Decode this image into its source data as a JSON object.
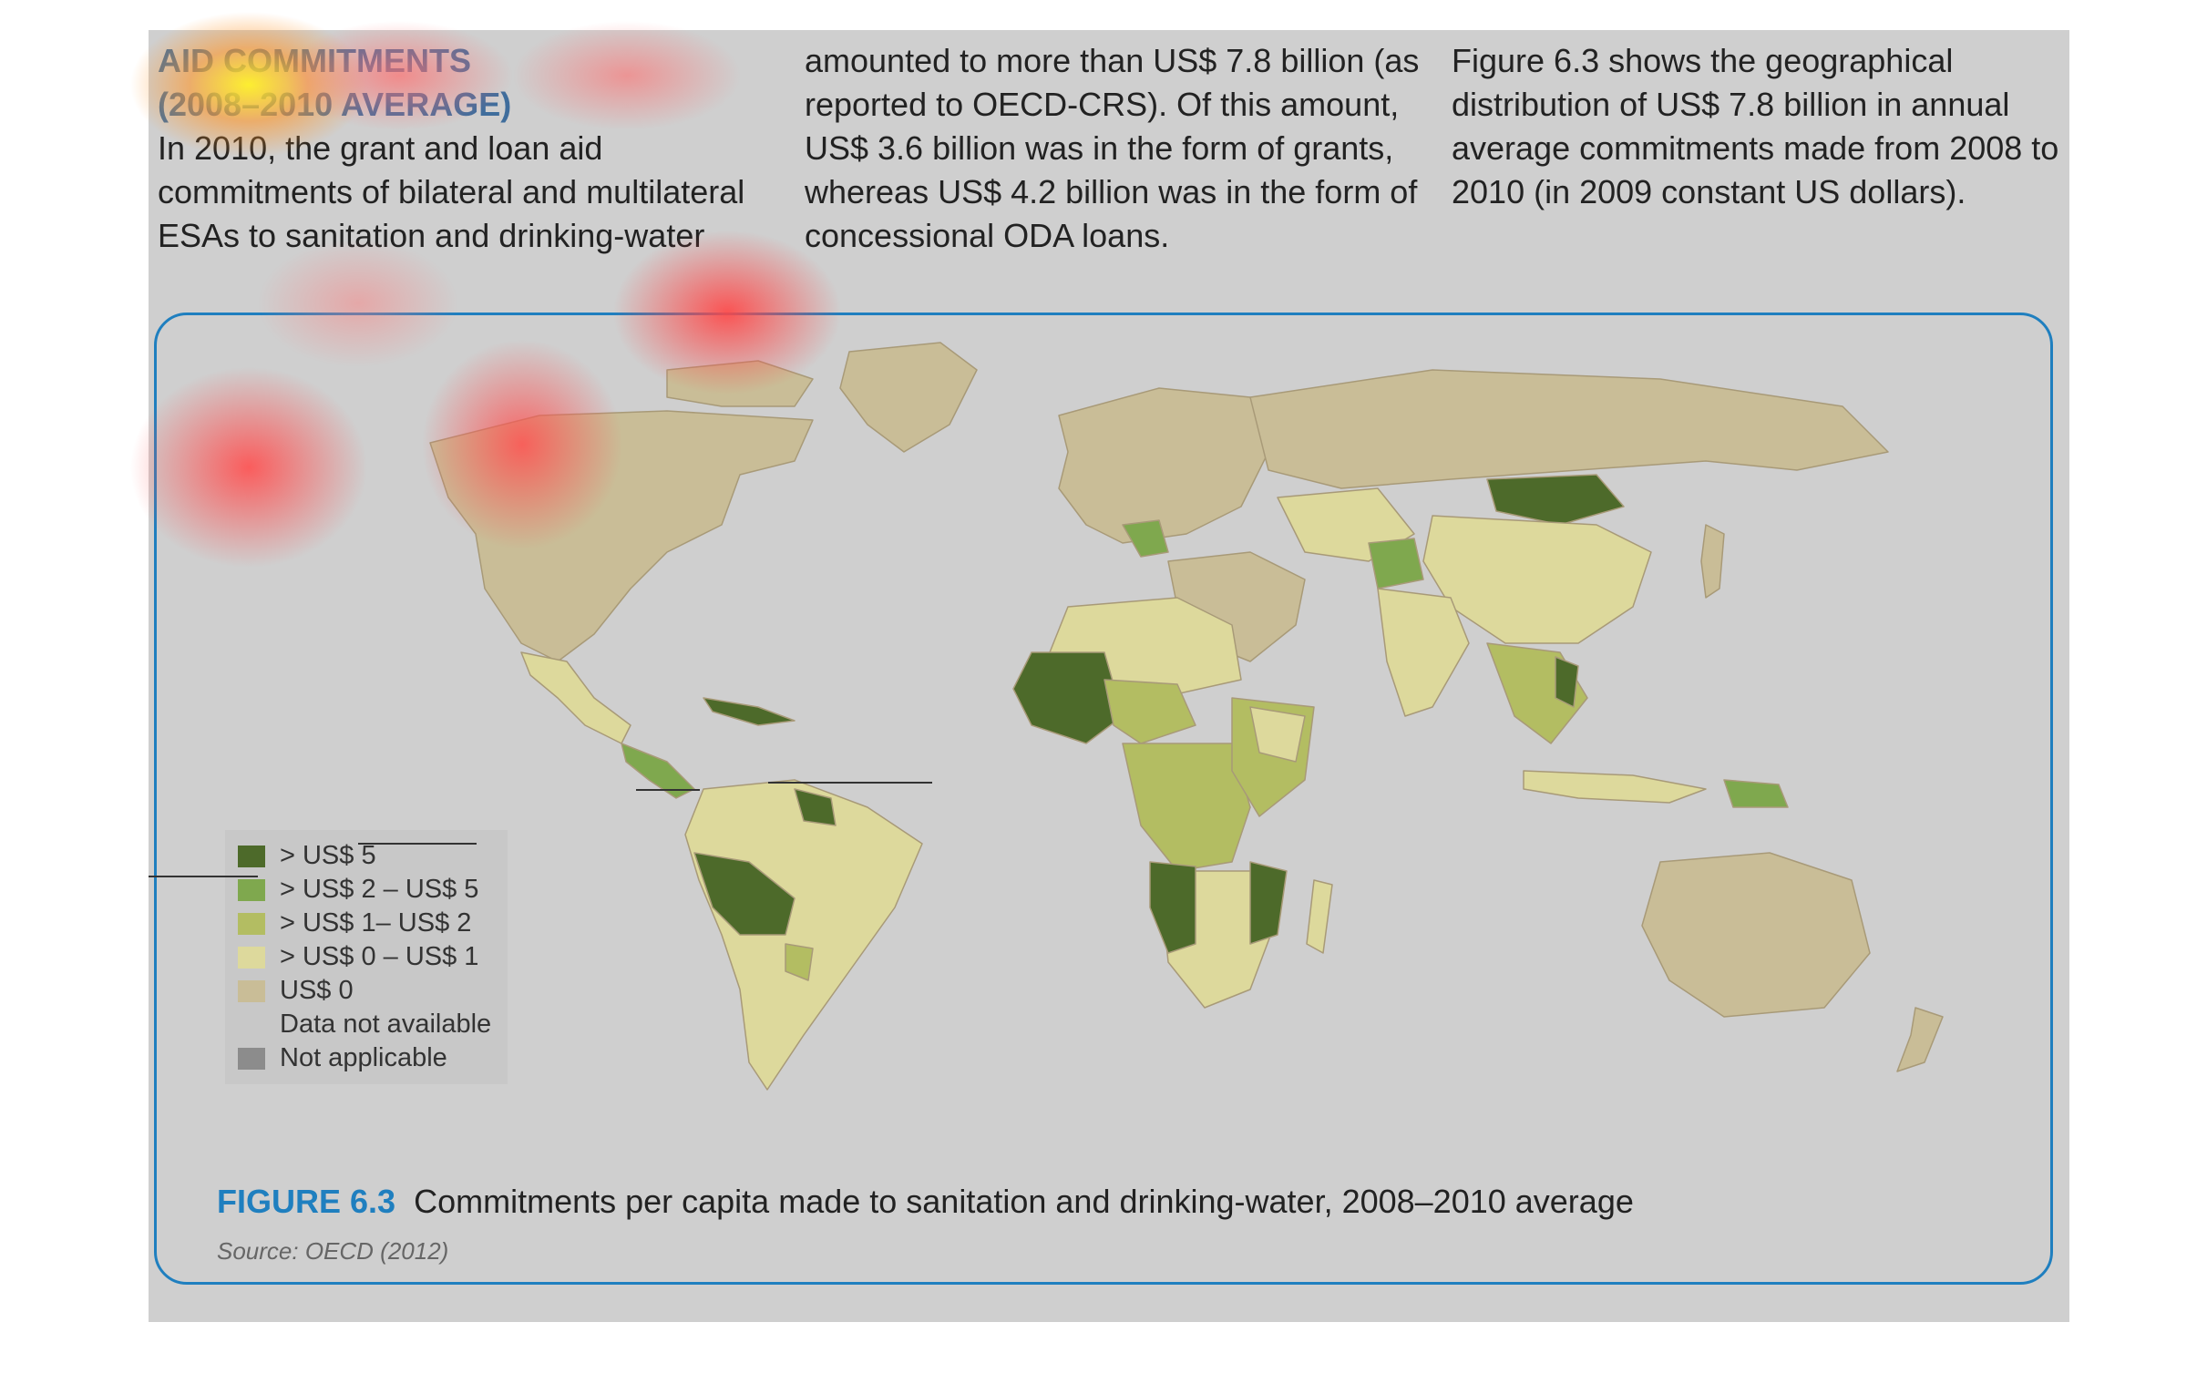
{
  "text": {
    "heading_line1": "AID COMMITMENTS",
    "heading_line2": "(2008–2010 AVERAGE)",
    "col1_body": "In 2010, the grant and loan aid commitments of bilateral and multilateral ESAs to sanitation and drinking-water",
    "col2_body": "amounted to more than US$ 7.8 billion (as reported to OECD-CRS). Of this amount, US$ 3.6 billion was in the form of grants, whereas US$ 4.2 billion was in the form of concessional ODA loans.",
    "col3_body": "Figure 6.3 shows the geographical distribution of US$ 7.8 billion in annual average commitments made from 2008 to 2010 (in 2009 constant US dollars)."
  },
  "figure": {
    "label": "FIGURE 6.3",
    "caption": "Commitments per capita made to sanitation and drinking-water, 2008–2010 average",
    "source": "Source: OECD (2012)"
  },
  "legend": [
    {
      "label": "> US$ 5",
      "color": "#4d6a2a"
    },
    {
      "label": "> US$ 2 – US$ 5",
      "color": "#7fa84e"
    },
    {
      "label": "> US$ 1– US$ 2",
      "color": "#b3bd62"
    },
    {
      "label": "> US$ 0 – US$ 1",
      "color": "#ddd99c"
    },
    {
      "label": "US$ 0",
      "color": "#c9bd97"
    },
    {
      "label": "Data not available",
      "color": "#c8c8c8"
    },
    {
      "label": "Not applicable",
      "color": "#8c8c8c"
    }
  ],
  "colors": {
    "accent_blue": "#1f7fbf",
    "heading_blue": "#3f6d9c",
    "ocean": "#cfcfcf",
    "border_line": "#a89a78"
  }
}
